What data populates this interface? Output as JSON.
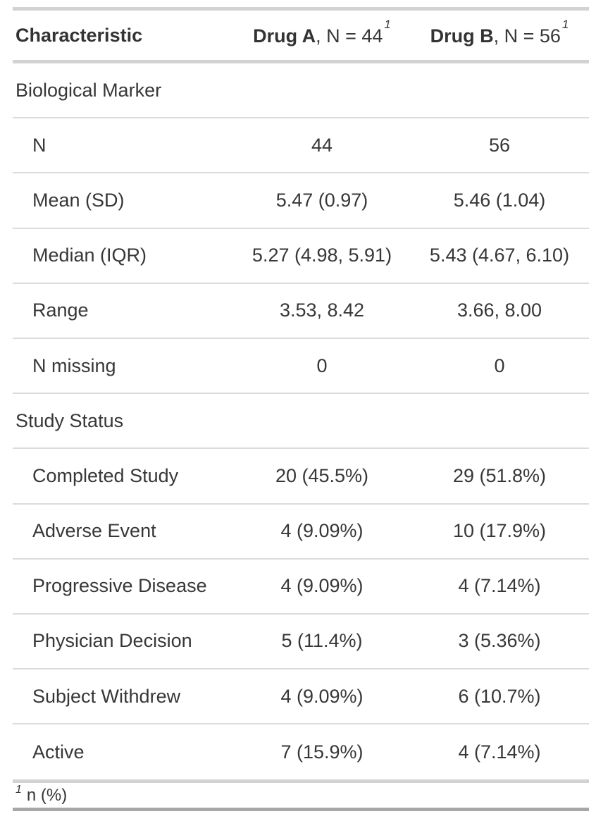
{
  "chart_data": {
    "type": "table",
    "title": "",
    "columns": [
      {
        "name": "Characteristic",
        "bold": "Characteristic",
        "rest": "",
        "footnote_mark": ""
      },
      {
        "name": "Drug A, N = 44",
        "bold": "Drug A",
        "rest": ", N = 44",
        "footnote_mark": "1"
      },
      {
        "name": "Drug B, N = 56",
        "bold": "Drug B",
        "rest": ", N = 56",
        "footnote_mark": "1"
      }
    ],
    "rows": [
      {
        "kind": "section",
        "label": "Biological Marker",
        "drug_a": "",
        "drug_b": ""
      },
      {
        "kind": "data",
        "label": "N",
        "drug_a": "44",
        "drug_b": "56"
      },
      {
        "kind": "data",
        "label": "Mean (SD)",
        "drug_a": "5.47 (0.97)",
        "drug_b": "5.46 (1.04)"
      },
      {
        "kind": "data",
        "label": "Median (IQR)",
        "drug_a": "5.27 (4.98, 5.91)",
        "drug_b": "5.43 (4.67, 6.10)"
      },
      {
        "kind": "data",
        "label": "Range",
        "drug_a": "3.53, 8.42",
        "drug_b": "3.66, 8.00"
      },
      {
        "kind": "data",
        "label": "N missing",
        "drug_a": "0",
        "drug_b": "0"
      },
      {
        "kind": "section",
        "label": "Study Status",
        "drug_a": "",
        "drug_b": ""
      },
      {
        "kind": "data",
        "label": "Completed Study",
        "drug_a": "20 (45.5%)",
        "drug_b": "29 (51.8%)"
      },
      {
        "kind": "data",
        "label": "Adverse Event",
        "drug_a": "4 (9.09%)",
        "drug_b": "10 (17.9%)"
      },
      {
        "kind": "data",
        "label": "Progressive Disease",
        "drug_a": "4 (9.09%)",
        "drug_b": "4 (7.14%)"
      },
      {
        "kind": "data",
        "label": "Physician Decision",
        "drug_a": "5 (11.4%)",
        "drug_b": "3 (5.36%)"
      },
      {
        "kind": "data",
        "label": "Subject Withdrew",
        "drug_a": "4 (9.09%)",
        "drug_b": "6 (10.7%)"
      },
      {
        "kind": "data",
        "label": "Active",
        "drug_a": "7 (15.9%)",
        "drug_b": "4 (7.14%)"
      }
    ],
    "footnote": {
      "mark": "1",
      "text": "n (%)"
    },
    "layout": {
      "grid": "off",
      "vertical_borders": "off"
    }
  },
  "colors": {
    "text": "#373737",
    "header_text": "#333333",
    "border_light": "#d2d2d2",
    "row_separator": "#dbdbdb",
    "border_bottom_dark": "#a7a7a7",
    "background": "#ffffff"
  }
}
